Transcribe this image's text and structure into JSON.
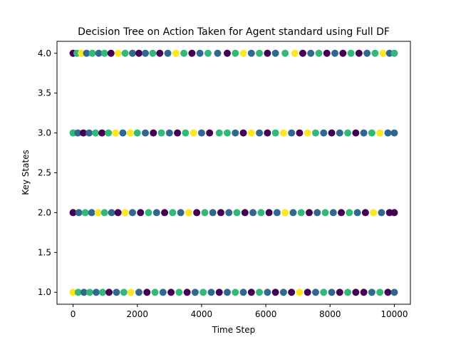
{
  "chart_data": {
    "type": "scatter",
    "title": "Decision Tree on Action Taken for Agent standard using Full DF",
    "xlabel": "Time Step",
    "ylabel": "Key States",
    "xlim": [
      -500,
      10500
    ],
    "ylim": [
      0.85,
      4.15
    ],
    "x_ticks": [
      0,
      2000,
      4000,
      6000,
      8000,
      10000
    ],
    "y_ticks": [
      1.0,
      1.5,
      2.0,
      2.5,
      3.0,
      3.5,
      4.0
    ],
    "x_tick_labels": [
      "0",
      "2000",
      "4000",
      "6000",
      "8000",
      "10000"
    ],
    "y_tick_labels": [
      "1.0",
      "1.5",
      "2.0",
      "2.5",
      "3.0",
      "3.5",
      "4.0"
    ],
    "grid": false,
    "legend": "none",
    "colormap": "viridis",
    "color_classes": [
      "#440154",
      "#31688e",
      "#35b779",
      "#fde725"
    ],
    "x_range": [
      0,
      10000
    ],
    "y_levels": [
      1,
      2,
      3,
      4
    ],
    "points": [
      {
        "x": 0,
        "y": 4,
        "c": 0
      },
      {
        "x": 120,
        "y": 4,
        "c": 2
      },
      {
        "x": 260,
        "y": 4,
        "c": 3
      },
      {
        "x": 420,
        "y": 4,
        "c": 1
      },
      {
        "x": 600,
        "y": 4,
        "c": 2
      },
      {
        "x": 800,
        "y": 4,
        "c": 1
      },
      {
        "x": 980,
        "y": 4,
        "c": 2
      },
      {
        "x": 1180,
        "y": 4,
        "c": 0
      },
      {
        "x": 1400,
        "y": 4,
        "c": 3
      },
      {
        "x": 1620,
        "y": 4,
        "c": 2
      },
      {
        "x": 1850,
        "y": 4,
        "c": 1
      },
      {
        "x": 2050,
        "y": 4,
        "c": 0
      },
      {
        "x": 2250,
        "y": 4,
        "c": 1
      },
      {
        "x": 2480,
        "y": 4,
        "c": 2
      },
      {
        "x": 2700,
        "y": 4,
        "c": 0
      },
      {
        "x": 2950,
        "y": 4,
        "c": 1
      },
      {
        "x": 3200,
        "y": 4,
        "c": 3
      },
      {
        "x": 3450,
        "y": 4,
        "c": 2
      },
      {
        "x": 3700,
        "y": 4,
        "c": 0
      },
      {
        "x": 3950,
        "y": 4,
        "c": 1
      },
      {
        "x": 4200,
        "y": 4,
        "c": 2
      },
      {
        "x": 4500,
        "y": 4,
        "c": 1
      },
      {
        "x": 4800,
        "y": 4,
        "c": 0
      },
      {
        "x": 5050,
        "y": 4,
        "c": 2
      },
      {
        "x": 5300,
        "y": 4,
        "c": 3
      },
      {
        "x": 5550,
        "y": 4,
        "c": 1
      },
      {
        "x": 5800,
        "y": 4,
        "c": 2
      },
      {
        "x": 6050,
        "y": 4,
        "c": 0
      },
      {
        "x": 6300,
        "y": 4,
        "c": 1
      },
      {
        "x": 6600,
        "y": 4,
        "c": 2
      },
      {
        "x": 6900,
        "y": 4,
        "c": 3
      },
      {
        "x": 7150,
        "y": 4,
        "c": 0
      },
      {
        "x": 7400,
        "y": 4,
        "c": 1
      },
      {
        "x": 7650,
        "y": 4,
        "c": 2
      },
      {
        "x": 7900,
        "y": 4,
        "c": 0
      },
      {
        "x": 8150,
        "y": 4,
        "c": 1
      },
      {
        "x": 8400,
        "y": 4,
        "c": 0
      },
      {
        "x": 8650,
        "y": 4,
        "c": 2
      },
      {
        "x": 8900,
        "y": 4,
        "c": 0
      },
      {
        "x": 9150,
        "y": 4,
        "c": 1
      },
      {
        "x": 9400,
        "y": 4,
        "c": 2
      },
      {
        "x": 9650,
        "y": 4,
        "c": 3
      },
      {
        "x": 9850,
        "y": 4,
        "c": 1
      },
      {
        "x": 10000,
        "y": 4,
        "c": 2
      },
      {
        "x": 0,
        "y": 3,
        "c": 2
      },
      {
        "x": 150,
        "y": 3,
        "c": 1
      },
      {
        "x": 320,
        "y": 3,
        "c": 0
      },
      {
        "x": 500,
        "y": 3,
        "c": 1
      },
      {
        "x": 700,
        "y": 3,
        "c": 2
      },
      {
        "x": 900,
        "y": 3,
        "c": 0
      },
      {
        "x": 1100,
        "y": 3,
        "c": 2
      },
      {
        "x": 1320,
        "y": 3,
        "c": 3
      },
      {
        "x": 1550,
        "y": 3,
        "c": 1
      },
      {
        "x": 1780,
        "y": 3,
        "c": 3
      },
      {
        "x": 2000,
        "y": 3,
        "c": 2
      },
      {
        "x": 2250,
        "y": 3,
        "c": 1
      },
      {
        "x": 2500,
        "y": 3,
        "c": 0
      },
      {
        "x": 2750,
        "y": 3,
        "c": 2
      },
      {
        "x": 3000,
        "y": 3,
        "c": 1
      },
      {
        "x": 3250,
        "y": 3,
        "c": 0
      },
      {
        "x": 3500,
        "y": 3,
        "c": 2
      },
      {
        "x": 3750,
        "y": 3,
        "c": 3
      },
      {
        "x": 4000,
        "y": 3,
        "c": 1
      },
      {
        "x": 4250,
        "y": 3,
        "c": 0
      },
      {
        "x": 4550,
        "y": 3,
        "c": 2
      },
      {
        "x": 4800,
        "y": 3,
        "c": 2
      },
      {
        "x": 5050,
        "y": 3,
        "c": 1
      },
      {
        "x": 5300,
        "y": 3,
        "c": 0
      },
      {
        "x": 5550,
        "y": 3,
        "c": 3
      },
      {
        "x": 5800,
        "y": 3,
        "c": 1
      },
      {
        "x": 6050,
        "y": 3,
        "c": 0
      },
      {
        "x": 6300,
        "y": 3,
        "c": 2
      },
      {
        "x": 6550,
        "y": 3,
        "c": 3
      },
      {
        "x": 6800,
        "y": 3,
        "c": 1
      },
      {
        "x": 7050,
        "y": 3,
        "c": 0
      },
      {
        "x": 7300,
        "y": 3,
        "c": 3
      },
      {
        "x": 7550,
        "y": 3,
        "c": 2
      },
      {
        "x": 7800,
        "y": 3,
        "c": 1
      },
      {
        "x": 8050,
        "y": 3,
        "c": 0
      },
      {
        "x": 8300,
        "y": 3,
        "c": 1
      },
      {
        "x": 8550,
        "y": 3,
        "c": 2
      },
      {
        "x": 8800,
        "y": 3,
        "c": 0
      },
      {
        "x": 9050,
        "y": 3,
        "c": 1
      },
      {
        "x": 9300,
        "y": 3,
        "c": 2
      },
      {
        "x": 9550,
        "y": 3,
        "c": 3
      },
      {
        "x": 9800,
        "y": 3,
        "c": 1
      },
      {
        "x": 10000,
        "y": 3,
        "c": 1
      },
      {
        "x": 0,
        "y": 2,
        "c": 0
      },
      {
        "x": 180,
        "y": 2,
        "c": 1
      },
      {
        "x": 380,
        "y": 2,
        "c": 2
      },
      {
        "x": 580,
        "y": 2,
        "c": 1
      },
      {
        "x": 780,
        "y": 2,
        "c": 3
      },
      {
        "x": 980,
        "y": 2,
        "c": 2
      },
      {
        "x": 1200,
        "y": 2,
        "c": 1
      },
      {
        "x": 1400,
        "y": 2,
        "c": 0
      },
      {
        "x": 1620,
        "y": 2,
        "c": 3
      },
      {
        "x": 1850,
        "y": 2,
        "c": 1
      },
      {
        "x": 2100,
        "y": 2,
        "c": 0
      },
      {
        "x": 2350,
        "y": 2,
        "c": 2
      },
      {
        "x": 2600,
        "y": 2,
        "c": 1
      },
      {
        "x": 2850,
        "y": 2,
        "c": 0
      },
      {
        "x": 3100,
        "y": 2,
        "c": 2
      },
      {
        "x": 3350,
        "y": 2,
        "c": 1
      },
      {
        "x": 3600,
        "y": 2,
        "c": 3
      },
      {
        "x": 3850,
        "y": 2,
        "c": 0
      },
      {
        "x": 4100,
        "y": 2,
        "c": 2
      },
      {
        "x": 4350,
        "y": 2,
        "c": 1
      },
      {
        "x": 4600,
        "y": 2,
        "c": 0
      },
      {
        "x": 4850,
        "y": 2,
        "c": 1
      },
      {
        "x": 5100,
        "y": 2,
        "c": 2
      },
      {
        "x": 5350,
        "y": 2,
        "c": 0
      },
      {
        "x": 5600,
        "y": 2,
        "c": 1
      },
      {
        "x": 5850,
        "y": 2,
        "c": 2
      },
      {
        "x": 6100,
        "y": 2,
        "c": 0
      },
      {
        "x": 6350,
        "y": 2,
        "c": 1
      },
      {
        "x": 6600,
        "y": 2,
        "c": 3
      },
      {
        "x": 6850,
        "y": 2,
        "c": 1
      },
      {
        "x": 7100,
        "y": 2,
        "c": 2
      },
      {
        "x": 7350,
        "y": 2,
        "c": 0
      },
      {
        "x": 7600,
        "y": 2,
        "c": 1
      },
      {
        "x": 7850,
        "y": 2,
        "c": 2
      },
      {
        "x": 8100,
        "y": 2,
        "c": 1
      },
      {
        "x": 8350,
        "y": 2,
        "c": 0
      },
      {
        "x": 8600,
        "y": 2,
        "c": 2
      },
      {
        "x": 8850,
        "y": 2,
        "c": 1
      },
      {
        "x": 9100,
        "y": 2,
        "c": 0
      },
      {
        "x": 9350,
        "y": 2,
        "c": 3
      },
      {
        "x": 9600,
        "y": 2,
        "c": 1
      },
      {
        "x": 9850,
        "y": 2,
        "c": 0
      },
      {
        "x": 10000,
        "y": 2,
        "c": 0
      },
      {
        "x": 0,
        "y": 1,
        "c": 3
      },
      {
        "x": 160,
        "y": 1,
        "c": 2
      },
      {
        "x": 340,
        "y": 1,
        "c": 1
      },
      {
        "x": 520,
        "y": 1,
        "c": 2
      },
      {
        "x": 720,
        "y": 1,
        "c": 1
      },
      {
        "x": 920,
        "y": 1,
        "c": 2
      },
      {
        "x": 1120,
        "y": 1,
        "c": 0
      },
      {
        "x": 1350,
        "y": 1,
        "c": 1
      },
      {
        "x": 1580,
        "y": 1,
        "c": 2
      },
      {
        "x": 1800,
        "y": 1,
        "c": 3
      },
      {
        "x": 2050,
        "y": 1,
        "c": 1
      },
      {
        "x": 2300,
        "y": 1,
        "c": 0
      },
      {
        "x": 2550,
        "y": 1,
        "c": 2
      },
      {
        "x": 2800,
        "y": 1,
        "c": 1
      },
      {
        "x": 3050,
        "y": 1,
        "c": 0
      },
      {
        "x": 3300,
        "y": 1,
        "c": 2
      },
      {
        "x": 3550,
        "y": 1,
        "c": 0
      },
      {
        "x": 3800,
        "y": 1,
        "c": 1
      },
      {
        "x": 4050,
        "y": 1,
        "c": 2
      },
      {
        "x": 4300,
        "y": 1,
        "c": 1
      },
      {
        "x": 4550,
        "y": 1,
        "c": 0
      },
      {
        "x": 4800,
        "y": 1,
        "c": 1
      },
      {
        "x": 5050,
        "y": 1,
        "c": 2
      },
      {
        "x": 5300,
        "y": 1,
        "c": 1
      },
      {
        "x": 5550,
        "y": 1,
        "c": 0
      },
      {
        "x": 5800,
        "y": 1,
        "c": 2
      },
      {
        "x": 6050,
        "y": 1,
        "c": 1
      },
      {
        "x": 6300,
        "y": 1,
        "c": 0
      },
      {
        "x": 6550,
        "y": 1,
        "c": 1
      },
      {
        "x": 6800,
        "y": 1,
        "c": 0
      },
      {
        "x": 7050,
        "y": 1,
        "c": 3
      },
      {
        "x": 7300,
        "y": 1,
        "c": 0
      },
      {
        "x": 7550,
        "y": 1,
        "c": 1
      },
      {
        "x": 7800,
        "y": 1,
        "c": 2
      },
      {
        "x": 8050,
        "y": 1,
        "c": 1
      },
      {
        "x": 8300,
        "y": 1,
        "c": 0
      },
      {
        "x": 8550,
        "y": 1,
        "c": 2
      },
      {
        "x": 8800,
        "y": 1,
        "c": 0
      },
      {
        "x": 9050,
        "y": 1,
        "c": 0
      },
      {
        "x": 9300,
        "y": 1,
        "c": 1
      },
      {
        "x": 9550,
        "y": 1,
        "c": 2
      },
      {
        "x": 9800,
        "y": 1,
        "c": 0
      },
      {
        "x": 10000,
        "y": 1,
        "c": 1
      }
    ]
  }
}
